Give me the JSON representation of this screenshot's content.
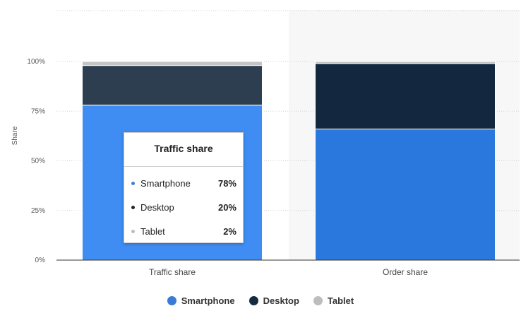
{
  "chart_data": {
    "type": "bar",
    "stacked": true,
    "categories": [
      "Traffic share",
      "Order share"
    ],
    "series": [
      {
        "name": "Smartphone",
        "values": [
          78,
          66
        ],
        "color": "#3f8cf3"
      },
      {
        "name": "Desktop",
        "values": [
          20,
          33
        ],
        "color": "#2c3e50"
      },
      {
        "name": "Tablet",
        "values": [
          2,
          1
        ],
        "color": "#c4c4c4"
      }
    ],
    "ylabel": "Share",
    "ylim": [
      0,
      100
    ],
    "yticks": [
      "0%",
      "25%",
      "50%",
      "75%",
      "100%"
    ],
    "grid": true,
    "legend_position": "bottom"
  },
  "tooltip": {
    "title": "Traffic share",
    "rows": [
      {
        "name": "Smartphone",
        "value": "78%",
        "color": "#3a7fe0"
      },
      {
        "name": "Desktop",
        "value": "20%",
        "color": "#1b2838"
      },
      {
        "name": "Tablet",
        "value": "2%",
        "color": "#bdbdbd"
      }
    ]
  },
  "legend": {
    "items": [
      {
        "label": "Smartphone",
        "color": "#3a7bd5"
      },
      {
        "label": "Desktop",
        "color": "#162a40"
      },
      {
        "label": "Tablet",
        "color": "#bdbdbd"
      }
    ]
  },
  "colors": {
    "traffic_smartphone": "#3f8cf3",
    "traffic_desktop": "#2c3e50",
    "traffic_tablet": "#c4c4c4",
    "order_smartphone": "#2a78dd",
    "order_desktop": "#13283f",
    "order_tablet": "#c4c4c4",
    "highlight_band": "#f7f7f7"
  }
}
